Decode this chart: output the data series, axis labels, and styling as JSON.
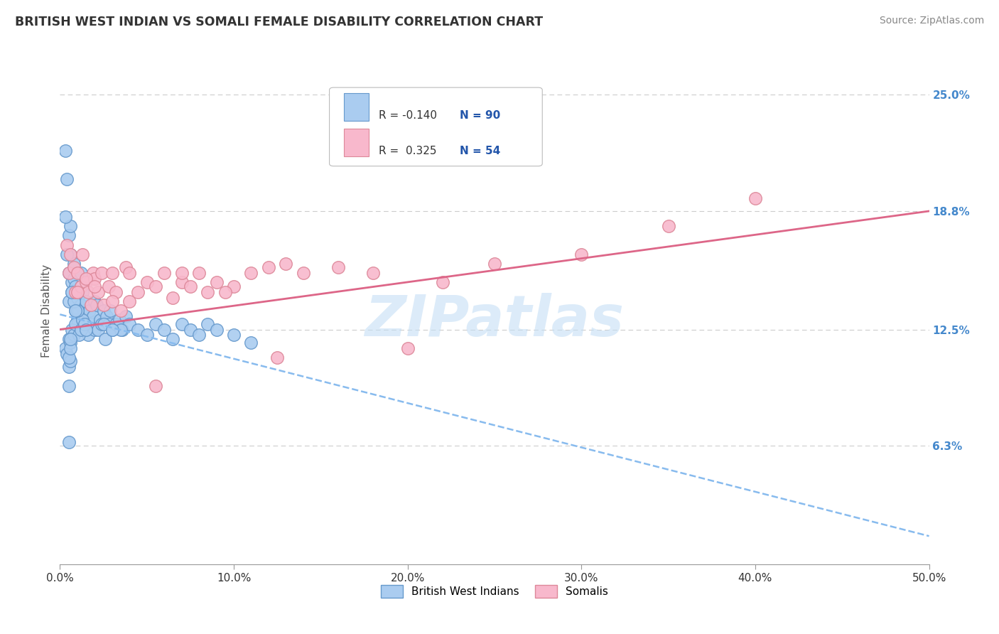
{
  "title": "BRITISH WEST INDIAN VS SOMALI FEMALE DISABILITY CORRELATION CHART",
  "source": "Source: ZipAtlas.com",
  "xlabel_vals": [
    0.0,
    10.0,
    20.0,
    30.0,
    40.0,
    50.0
  ],
  "ylabel_right_ticks": [
    "6.3%",
    "12.5%",
    "18.8%",
    "25.0%"
  ],
  "ylabel_right_vals": [
    6.3,
    12.5,
    18.8,
    25.0
  ],
  "ylabel_label": "Female Disability",
  "ylim": [
    0.0,
    27.0
  ],
  "xlim": [
    0.0,
    50.0
  ],
  "series1_label": "British West Indians",
  "series1_color": "#aaccf0",
  "series1_edge_color": "#6699cc",
  "series2_label": "Somalis",
  "series2_color": "#f8b8cc",
  "series2_edge_color": "#dd8899",
  "trend1_color": "#88bbee",
  "trend1_style": "--",
  "trend2_color": "#dd6688",
  "trend2_style": "-",
  "title_color": "#333333",
  "source_color": "#888888",
  "right_axis_color": "#4488cc",
  "background_color": "#ffffff",
  "grid_color": "#cccccc",
  "watermark": "ZIPatlas",
  "watermark_color": "#c5dff5",
  "legend_color": "#2255aa",
  "bwi_x": [
    0.3,
    0.4,
    0.5,
    0.5,
    0.5,
    0.6,
    0.6,
    0.7,
    0.7,
    0.8,
    0.8,
    0.9,
    0.9,
    1.0,
    1.0,
    1.0,
    1.1,
    1.1,
    1.2,
    1.2,
    1.3,
    1.3,
    1.4,
    1.4,
    1.5,
    1.5,
    1.6,
    1.6,
    1.7,
    1.8,
    1.9,
    2.0,
    2.0,
    2.1,
    2.2,
    2.3,
    2.4,
    2.5,
    2.6,
    2.7,
    2.8,
    2.9,
    3.0,
    3.2,
    3.4,
    3.6,
    3.8,
    4.0,
    4.5,
    5.0,
    5.5,
    6.0,
    6.5,
    7.0,
    7.5,
    8.0,
    8.5,
    9.0,
    10.0,
    11.0,
    0.3,
    0.4,
    0.5,
    0.6,
    0.7,
    0.8,
    0.9,
    1.0,
    1.1,
    1.2,
    1.3,
    1.4,
    0.5,
    0.6,
    0.5,
    0.5,
    0.6,
    0.6,
    0.5,
    1.5,
    2.5,
    3.5,
    1.0,
    0.8,
    3.0,
    1.2,
    0.7,
    0.9,
    0.4,
    0.3
  ],
  "bwi_y": [
    22.0,
    20.5,
    17.5,
    15.5,
    14.0,
    16.5,
    18.0,
    15.0,
    14.5,
    16.0,
    15.2,
    14.8,
    13.5,
    13.0,
    12.8,
    14.2,
    13.5,
    12.5,
    13.8,
    14.8,
    13.2,
    14.5,
    12.8,
    13.5,
    12.5,
    14.0,
    13.0,
    12.2,
    13.5,
    12.8,
    13.2,
    12.5,
    14.0,
    13.8,
    12.5,
    13.0,
    12.8,
    13.5,
    12.0,
    13.2,
    12.8,
    13.5,
    12.5,
    12.8,
    13.0,
    12.5,
    13.2,
    12.8,
    12.5,
    12.2,
    12.8,
    12.5,
    12.0,
    12.8,
    12.5,
    12.2,
    12.8,
    12.5,
    12.2,
    11.8,
    11.5,
    11.2,
    12.0,
    11.8,
    12.5,
    12.2,
    12.8,
    13.5,
    12.2,
    12.5,
    13.0,
    12.8,
    10.5,
    10.8,
    9.5,
    11.0,
    11.5,
    12.0,
    6.5,
    12.5,
    12.8,
    12.5,
    13.5,
    14.0,
    12.5,
    15.5,
    14.5,
    13.5,
    16.5,
    18.5
  ],
  "somali_x": [
    0.4,
    0.5,
    0.6,
    0.8,
    0.9,
    1.0,
    1.2,
    1.3,
    1.5,
    1.6,
    1.8,
    1.9,
    2.0,
    2.2,
    2.4,
    2.5,
    2.8,
    3.0,
    3.2,
    3.5,
    3.8,
    4.0,
    4.5,
    5.0,
    5.5,
    6.0,
    6.5,
    7.0,
    7.5,
    8.0,
    8.5,
    9.0,
    10.0,
    11.0,
    12.0,
    13.0,
    14.0,
    16.0,
    18.0,
    20.0,
    22.0,
    25.0,
    30.0,
    35.0,
    40.0,
    1.0,
    1.5,
    2.0,
    3.0,
    4.0,
    5.5,
    7.0,
    9.5,
    12.5
  ],
  "somali_y": [
    17.0,
    15.5,
    16.5,
    15.8,
    14.5,
    15.5,
    14.8,
    16.5,
    15.0,
    14.5,
    13.8,
    15.5,
    15.2,
    14.5,
    15.5,
    13.8,
    14.8,
    15.5,
    14.5,
    13.5,
    15.8,
    14.0,
    14.5,
    15.0,
    14.8,
    15.5,
    14.2,
    15.0,
    14.8,
    15.5,
    14.5,
    15.0,
    14.8,
    15.5,
    15.8,
    16.0,
    15.5,
    15.8,
    15.5,
    11.5,
    15.0,
    16.0,
    16.5,
    18.0,
    19.5,
    14.5,
    15.2,
    14.8,
    14.0,
    15.5,
    9.5,
    15.5,
    14.5,
    11.0
  ],
  "trend1_x_start": 0.0,
  "trend1_y_start": 13.3,
  "trend1_x_end": 50.0,
  "trend1_y_end": 1.5,
  "trend2_x_start": 0.0,
  "trend2_y_start": 12.5,
  "trend2_x_end": 50.0,
  "trend2_y_end": 18.8
}
